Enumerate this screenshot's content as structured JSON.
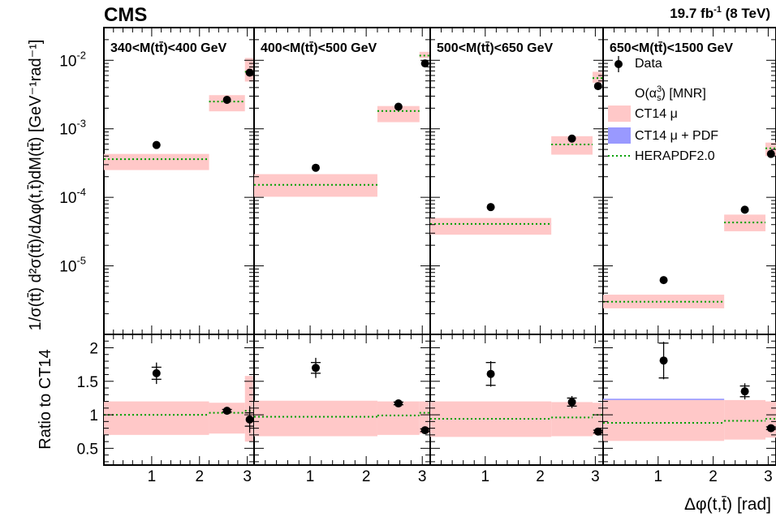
{
  "header": {
    "experiment": "CMS",
    "lumi_value": "19.7 fb",
    "lumi_exp": "-1",
    "lumi_energy": " (8 TeV)"
  },
  "colors": {
    "ct14_mu": "#ffc8c8",
    "ct14_mu_pdf": "#9999ff",
    "herapdf": "#00a000",
    "data": "#000000"
  },
  "chart_data": {
    "type": "scatter",
    "xlabel": "Δφ(t,t̄) [rad]",
    "ylabel_top": "1/σ(tt̄) d²σ(tt̄)/dΔφ(t,t̄)dM(tt̄) [GeV⁻¹rad⁻¹]",
    "ylabel_ratio": "Ratio to CT14",
    "x_range": [
      0,
      3.14159
    ],
    "x_ticks": [
      "1",
      "2",
      "3"
    ],
    "x_bins": [
      [
        0,
        2.2
      ],
      [
        2.2,
        2.95
      ],
      [
        2.95,
        3.14159
      ]
    ],
    "x_centers": [
      1.1,
      2.575,
      3.05
    ],
    "y_log_range": [
      1e-06,
      0.03
    ],
    "y_ticks": [
      {
        "base": "10",
        "exp": "-2"
      },
      {
        "base": "10",
        "exp": "-3"
      },
      {
        "base": "10",
        "exp": "-4"
      },
      {
        "base": "10",
        "exp": "-5"
      }
    ],
    "ratio_range": [
      0.25,
      2.2
    ],
    "ratio_ticks": [
      "0.5",
      "1",
      "1.5",
      "2"
    ],
    "legend": [
      {
        "label": "Data"
      },
      {
        "label": "O(α",
        "sub": "s",
        "sup": "3",
        "tail": ") [MNR]"
      },
      {
        "label": "CT14 μ"
      },
      {
        "label": "CT14 μ + PDF"
      },
      {
        "label": "HERAPDF2.0"
      }
    ],
    "legend_position": "top-right (last panel)",
    "panels": [
      {
        "label": "340<M(tt̄)<400 GeV",
        "data": [
          {
            "y": 0.00058,
            "ylo": 0.00053,
            "yhi": 0.00063
          },
          {
            "y": 0.00265,
            "ylo": 0.0025,
            "yhi": 0.0028
          },
          {
            "y": 0.0066,
            "ylo": 0.0058,
            "yhi": 0.0075
          }
        ],
        "theory": [
          {
            "lo": 0.00025,
            "hi": 0.00043,
            "hera": 0.00036
          },
          {
            "lo": 0.0018,
            "hi": 0.0031,
            "hera": 0.0025
          },
          {
            "lo": 0.0049,
            "hi": 0.0108,
            "hera": 0.0068
          }
        ],
        "ratio": [
          {
            "y": 1.62,
            "stat": 0.09,
            "tot": 0.16
          },
          {
            "y": 1.06,
            "stat": 0.02,
            "tot": 0.04
          },
          {
            "y": 0.93,
            "stat": 0.1,
            "tot": 0.2
          }
        ],
        "ratio_band": [
          {
            "lo": 0.7,
            "hi": 1.2,
            "hera": 1.0
          },
          {
            "lo": 0.72,
            "hi": 1.18,
            "hera": 1.03
          },
          {
            "lo": 0.6,
            "hi": 1.58,
            "hera": 1.06
          }
        ]
      },
      {
        "label": "400<M(tt̄)<500 GeV",
        "data": [
          {
            "y": 0.00027,
            "ylo": 0.00025,
            "yhi": 0.00029
          },
          {
            "y": 0.0021,
            "ylo": 0.002,
            "yhi": 0.0022
          },
          {
            "y": 0.009,
            "ylo": 0.0085,
            "yhi": 0.0095
          }
        ],
        "theory": [
          {
            "lo": 0.000102,
            "hi": 0.000218,
            "hera": 0.000152
          },
          {
            "lo": 0.00125,
            "hi": 0.00215,
            "hera": 0.00182
          },
          {
            "lo": 0.0108,
            "hi": 0.0133,
            "hera": 0.0117
          }
        ],
        "ratio": [
          {
            "y": 1.7,
            "stat": 0.08,
            "tot": 0.15
          },
          {
            "y": 1.17,
            "stat": 0.02,
            "tot": 0.04
          },
          {
            "y": 0.77,
            "stat": 0.02,
            "tot": 0.04
          }
        ],
        "ratio_band": [
          {
            "lo": 0.68,
            "hi": 1.21,
            "hera": 0.97
          },
          {
            "lo": 0.7,
            "hi": 1.2,
            "hera": 0.99
          },
          {
            "lo": 0.72,
            "hi": 1.2,
            "hera": 1.03
          }
        ]
      },
      {
        "label": "500<M(tt̄)<650 GeV",
        "data": [
          {
            "y": 7.2e-05,
            "ylo": 6.4e-05,
            "yhi": 8e-05
          },
          {
            "y": 0.00072,
            "ylo": 0.00068,
            "yhi": 0.00076
          },
          {
            "y": 0.0042,
            "ylo": 0.004,
            "yhi": 0.0044
          }
        ],
        "theory": [
          {
            "lo": 2.85e-05,
            "hi": 5e-05,
            "hera": 4.1e-05
          },
          {
            "lo": 0.00042,
            "hi": 0.00078,
            "hera": 0.00059
          },
          {
            "lo": 0.0047,
            "hi": 0.0068,
            "hera": 0.0055
          }
        ],
        "ratio": [
          {
            "y": 1.61,
            "stat": 0.17,
            "tot": 0.19
          },
          {
            "y": 1.19,
            "stat": 0.06,
            "tot": 0.09
          },
          {
            "y": 0.75,
            "stat": 0.02,
            "tot": 0.03
          }
        ],
        "ratio_band": [
          {
            "lo": 0.67,
            "hi": 1.2,
            "hera": 0.94
          },
          {
            "lo": 0.68,
            "hi": 1.19,
            "hera": 0.96
          },
          {
            "lo": 0.7,
            "hi": 1.18,
            "hera": 1.0
          }
        ]
      },
      {
        "label": "650<M(tt̄)<1500 GeV",
        "data": [
          {
            "y": 6.2e-06,
            "ylo": 5.6e-06,
            "yhi": 6.8e-06
          },
          {
            "y": 6.6e-05,
            "ylo": 6.3e-05,
            "yhi": 6.9e-05
          },
          {
            "y": 0.00043,
            "ylo": 0.00041,
            "yhi": 0.00045
          }
        ],
        "theory": [
          {
            "lo": 2.4e-06,
            "hi": 3.8e-06,
            "hera": 3e-06
          },
          {
            "lo": 3.2e-05,
            "hi": 5.6e-05,
            "hera": 4.3e-05
          },
          {
            "lo": 0.0004,
            "hi": 0.00063,
            "hera": 0.00052
          }
        ],
        "ratio": [
          {
            "y": 1.81,
            "stat": 0.26,
            "tot": 0.28
          },
          {
            "y": 1.35,
            "stat": 0.08,
            "tot": 0.12
          },
          {
            "y": 0.8,
            "stat": 0.02,
            "tot": 0.03
          }
        ],
        "ratio_band": [
          {
            "lo": 0.61,
            "hi": 1.23,
            "hera": 0.88
          },
          {
            "lo": 0.63,
            "hi": 1.22,
            "hera": 0.91
          },
          {
            "lo": 0.66,
            "hi": 1.2,
            "hera": 0.94
          }
        ]
      }
    ]
  }
}
